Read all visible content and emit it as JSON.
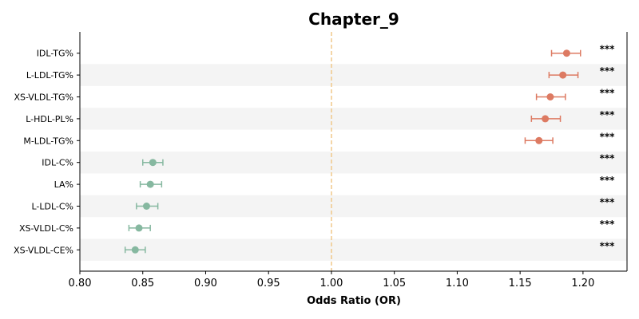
{
  "chart_data": {
    "type": "forest",
    "title": "Chapter_9",
    "xlabel": "Odds Ratio (OR)",
    "xlim": [
      0.8,
      1.235
    ],
    "xticks": [
      0.8,
      0.85,
      0.9,
      0.95,
      1.0,
      1.05,
      1.1,
      1.15,
      1.2
    ],
    "xtick_labels": [
      "0.80",
      "0.85",
      "0.90",
      "0.95",
      "1.00",
      "1.05",
      "1.10",
      "1.15",
      "1.20"
    ],
    "reference_line": 1.0,
    "colors": {
      "positive": "#dd7a62",
      "negative": "#86b8a0",
      "reference": "#f0c88a",
      "stripe": "#f4f4f4"
    },
    "rows": [
      {
        "label": "IDL-TG%",
        "or": 1.187,
        "lo": 1.175,
        "hi": 1.198,
        "sig": "***"
      },
      {
        "label": "L-LDL-TG%",
        "or": 1.184,
        "lo": 1.173,
        "hi": 1.196,
        "sig": "***"
      },
      {
        "label": "XS-VLDL-TG%",
        "or": 1.174,
        "lo": 1.163,
        "hi": 1.186,
        "sig": "***"
      },
      {
        "label": "L-HDL-PL%",
        "or": 1.17,
        "lo": 1.159,
        "hi": 1.182,
        "sig": "***"
      },
      {
        "label": "M-LDL-TG%",
        "or": 1.165,
        "lo": 1.154,
        "hi": 1.176,
        "sig": "***"
      },
      {
        "label": "IDL-C%",
        "or": 0.858,
        "lo": 0.85,
        "hi": 0.866,
        "sig": "***"
      },
      {
        "label": "LA%",
        "or": 0.856,
        "lo": 0.848,
        "hi": 0.865,
        "sig": "***"
      },
      {
        "label": "L-LDL-C%",
        "or": 0.853,
        "lo": 0.845,
        "hi": 0.862,
        "sig": "***"
      },
      {
        "label": "XS-VLDL-C%",
        "or": 0.847,
        "lo": 0.839,
        "hi": 0.856,
        "sig": "***"
      },
      {
        "label": "XS-VLDL-CE%",
        "or": 0.844,
        "lo": 0.836,
        "hi": 0.852,
        "sig": "***"
      }
    ]
  }
}
